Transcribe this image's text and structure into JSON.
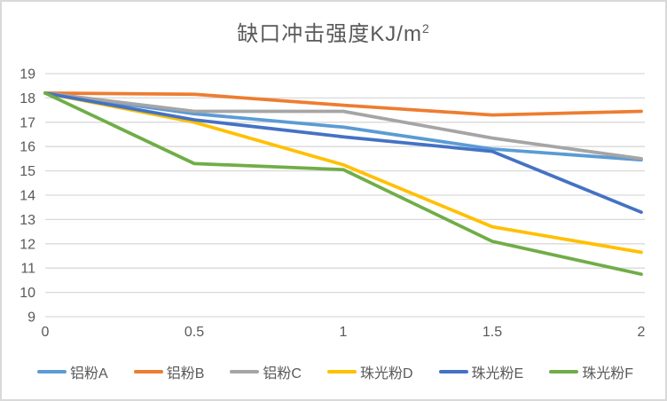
{
  "title": {
    "main": "缺口冲击强度KJ/m",
    "sup": "2",
    "full": "缺口冲击强度KJ/m²"
  },
  "style": {
    "title_color": "#595959",
    "axis_label_color": "#595959",
    "gridline_color": "#d9d9d9",
    "frame_border_color": "#d9d9d9",
    "background": "#ffffff"
  },
  "chart_data": {
    "type": "line",
    "title": "缺口冲击强度KJ/m²",
    "x": [
      0,
      0.5,
      1,
      1.5,
      2
    ],
    "x_tick_labels": [
      "0",
      "0.5",
      "1",
      "1.5",
      "2"
    ],
    "y_ticks": [
      9,
      10,
      11,
      12,
      13,
      14,
      15,
      16,
      17,
      18,
      19
    ],
    "ylim": [
      9,
      19
    ],
    "xlabel": "",
    "ylabel": "",
    "grid": "horizontal-only",
    "legend_position": "bottom",
    "series": [
      {
        "name": "铝粉A",
        "color": "#5B9BD5",
        "values": [
          18.2,
          17.35,
          16.8,
          15.9,
          15.45
        ]
      },
      {
        "name": "铝粉B",
        "color": "#ED7D31",
        "values": [
          18.2,
          18.15,
          17.7,
          17.3,
          17.45
        ]
      },
      {
        "name": "铝粉C",
        "color": "#A5A5A5",
        "values": [
          18.2,
          17.45,
          17.45,
          16.35,
          15.5
        ]
      },
      {
        "name": "珠光粉D",
        "color": "#FFC000",
        "values": [
          18.2,
          17.0,
          15.25,
          12.7,
          11.65
        ]
      },
      {
        "name": "珠光粉E",
        "color": "#4472C4",
        "values": [
          18.2,
          17.1,
          16.4,
          15.8,
          13.3
        ]
      },
      {
        "name": "珠光粉F",
        "color": "#70AD47",
        "values": [
          18.2,
          15.3,
          15.05,
          12.1,
          10.75
        ]
      }
    ]
  }
}
